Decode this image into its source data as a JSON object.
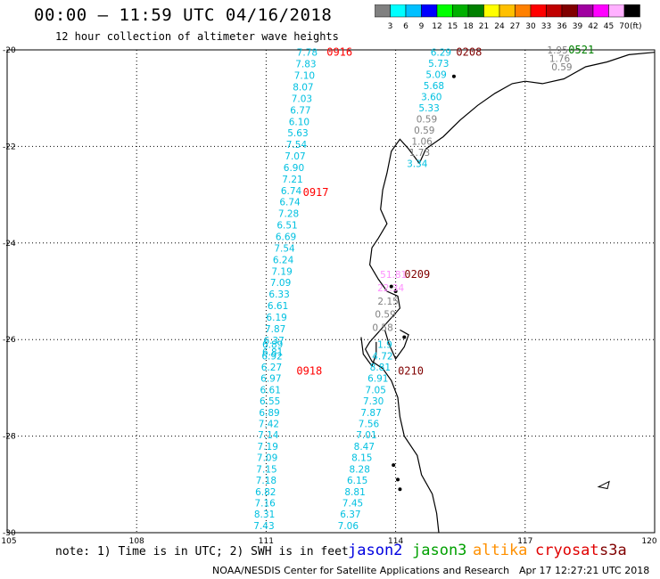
{
  "header": {
    "title": "00:00 – 11:59 UTC 04/16/2018",
    "subtitle": "12 hour collection of altimeter wave heights"
  },
  "scale": {
    "unit": "(ft)",
    "bins": [
      {
        "label": "3",
        "color": "#808080"
      },
      {
        "label": "6",
        "color": "#00ffff"
      },
      {
        "label": "9",
        "color": "#00c0ff"
      },
      {
        "label": "12",
        "color": "#0000ff"
      },
      {
        "label": "15",
        "color": "#00ff00"
      },
      {
        "label": "18",
        "color": "#00b000"
      },
      {
        "label": "21",
        "color": "#008000"
      },
      {
        "label": "24",
        "color": "#ffff00"
      },
      {
        "label": "27",
        "color": "#ffc000"
      },
      {
        "label": "30",
        "color": "#ff8000"
      },
      {
        "label": "33",
        "color": "#ff0000"
      },
      {
        "label": "36",
        "color": "#c00000"
      },
      {
        "label": "39",
        "color": "#800000"
      },
      {
        "label": "42",
        "color": "#a000a0"
      },
      {
        "label": "45",
        "color": "#ff00ff"
      },
      {
        "label": "70",
        "color": "#ffb0ff"
      },
      {
        "label": "",
        "color": "#000000"
      }
    ]
  },
  "map": {
    "lon_range": [
      105,
      120
    ],
    "lat_range": [
      -30,
      -20
    ],
    "lon_ticks": [
      "105",
      "108",
      "111",
      "114",
      "117",
      "120"
    ],
    "lat_ticks": [
      "-20",
      "-22",
      "-24",
      "-26",
      "-28",
      "-30"
    ],
    "tracks": [
      {
        "time": "0916",
        "time_color": "#ff0000",
        "value_color": "#00c0e0",
        "lat_start": -20.05,
        "lat_end": -26.25,
        "lon_start": 111.95,
        "lon_end": 111.15,
        "values": [
          "7.78",
          "7.83",
          "7.10",
          "8.07",
          "7.03",
          "6.77",
          "6.10",
          "5.63",
          "7.54",
          "7.07",
          "6.90",
          "7.21",
          "6.74",
          "6.74",
          "7.28",
          "6.51",
          "6.69",
          "7.54",
          "6.24",
          "7.19",
          "7.09",
          "6.33",
          "6.61",
          "6.19",
          "7.87",
          "6.37",
          "6.81"
        ]
      },
      {
        "time": "0917",
        "time_color": "#ff0000",
        "lat": -22.95,
        "lon": 112.15
      },
      {
        "time": "0918",
        "time_color": "#ff0000",
        "value_color": "#00c0e0",
        "lat_start": -26.1,
        "lat_end": -29.85,
        "lon_start": 111.15,
        "lon_end": 110.95,
        "values": [
          "6.89",
          "6.92",
          "6.27",
          "6.97",
          "6.61",
          "6.55",
          "6.89",
          "7.42",
          "7.14",
          "7.19",
          "7.09",
          "7.15",
          "7.18",
          "6.82",
          "7.16",
          "8.31",
          "7.43"
        ],
        "time_lat": -26.65,
        "time_lon": 112.0
      },
      {
        "time": "0208",
        "time_color": "#800000",
        "value_color": "#00c0e0",
        "lat_start": -20.05,
        "lat_end": -22.35,
        "lon_start": 115.05,
        "lon_end": 114.5,
        "values": [
          "6.29",
          "5.73",
          "5.09",
          "5.68",
          "3.60",
          "5.33",
          "0.59",
          "0.59",
          "1.06",
          "1.73",
          "3.34"
        ],
        "value_colors": [
          "#00c0e0",
          "#00c0e0",
          "#00c0e0",
          "#00c0e0",
          "#00c0e0",
          "#00c0e0",
          "#808080",
          "#808080",
          "#808080",
          "#808080",
          "#00c0e0"
        ]
      },
      {
        "time": "0209",
        "time_color": "#800000",
        "value_color": "#808080",
        "lat_start": -24.65,
        "lat_end": -25.75,
        "lon_start": 113.95,
        "lon_end": 113.7,
        "values": [
          "51.81",
          "22.34",
          "2.15",
          "0.59",
          "0.58"
        ],
        "value_colors": [
          "#ff90ff",
          "#ff90ff",
          "#808080",
          "#808080",
          "#808080"
        ]
      },
      {
        "time": "0210",
        "time_color": "#800000",
        "value_color": "#00c0e0",
        "lat_start": -26.1,
        "lat_end": -29.85,
        "lon_start": 113.75,
        "lon_end": 112.9,
        "values": [
          "1.9",
          "4.72",
          "8.81",
          "6.91",
          "7.05",
          "7.30",
          "7.87",
          "7.56",
          "7.01",
          "8.47",
          "8.15",
          "8.28",
          "6.15",
          "8.81",
          "7.45",
          "6.37",
          "7.06"
        ]
      },
      {
        "time": "0521",
        "time_color": "#008000",
        "value_color": "#808080",
        "lat_start": -20.0,
        "lat_end": -20.35,
        "lon_start": 117.75,
        "lon_end": 117.85,
        "values": [
          "1.95",
          "1.76",
          "0.59"
        ]
      }
    ]
  },
  "footer": {
    "note": "note: 1) Time is in UTC; 2) SWH is in feet",
    "satellites": [
      {
        "name": "jason2",
        "color": "#0000e0"
      },
      {
        "name": "jason3",
        "color": "#00a000"
      },
      {
        "name": "altika",
        "color": "#ff9000"
      },
      {
        "name": "cryosat",
        "color": "#e00000"
      },
      {
        "name": "s3a",
        "color": "#800000"
      }
    ],
    "credit": "NOAA/NESDIS Center for Satellite Applications and Research",
    "timestamp": "Apr 17 12:27:21 UTC 2018"
  }
}
